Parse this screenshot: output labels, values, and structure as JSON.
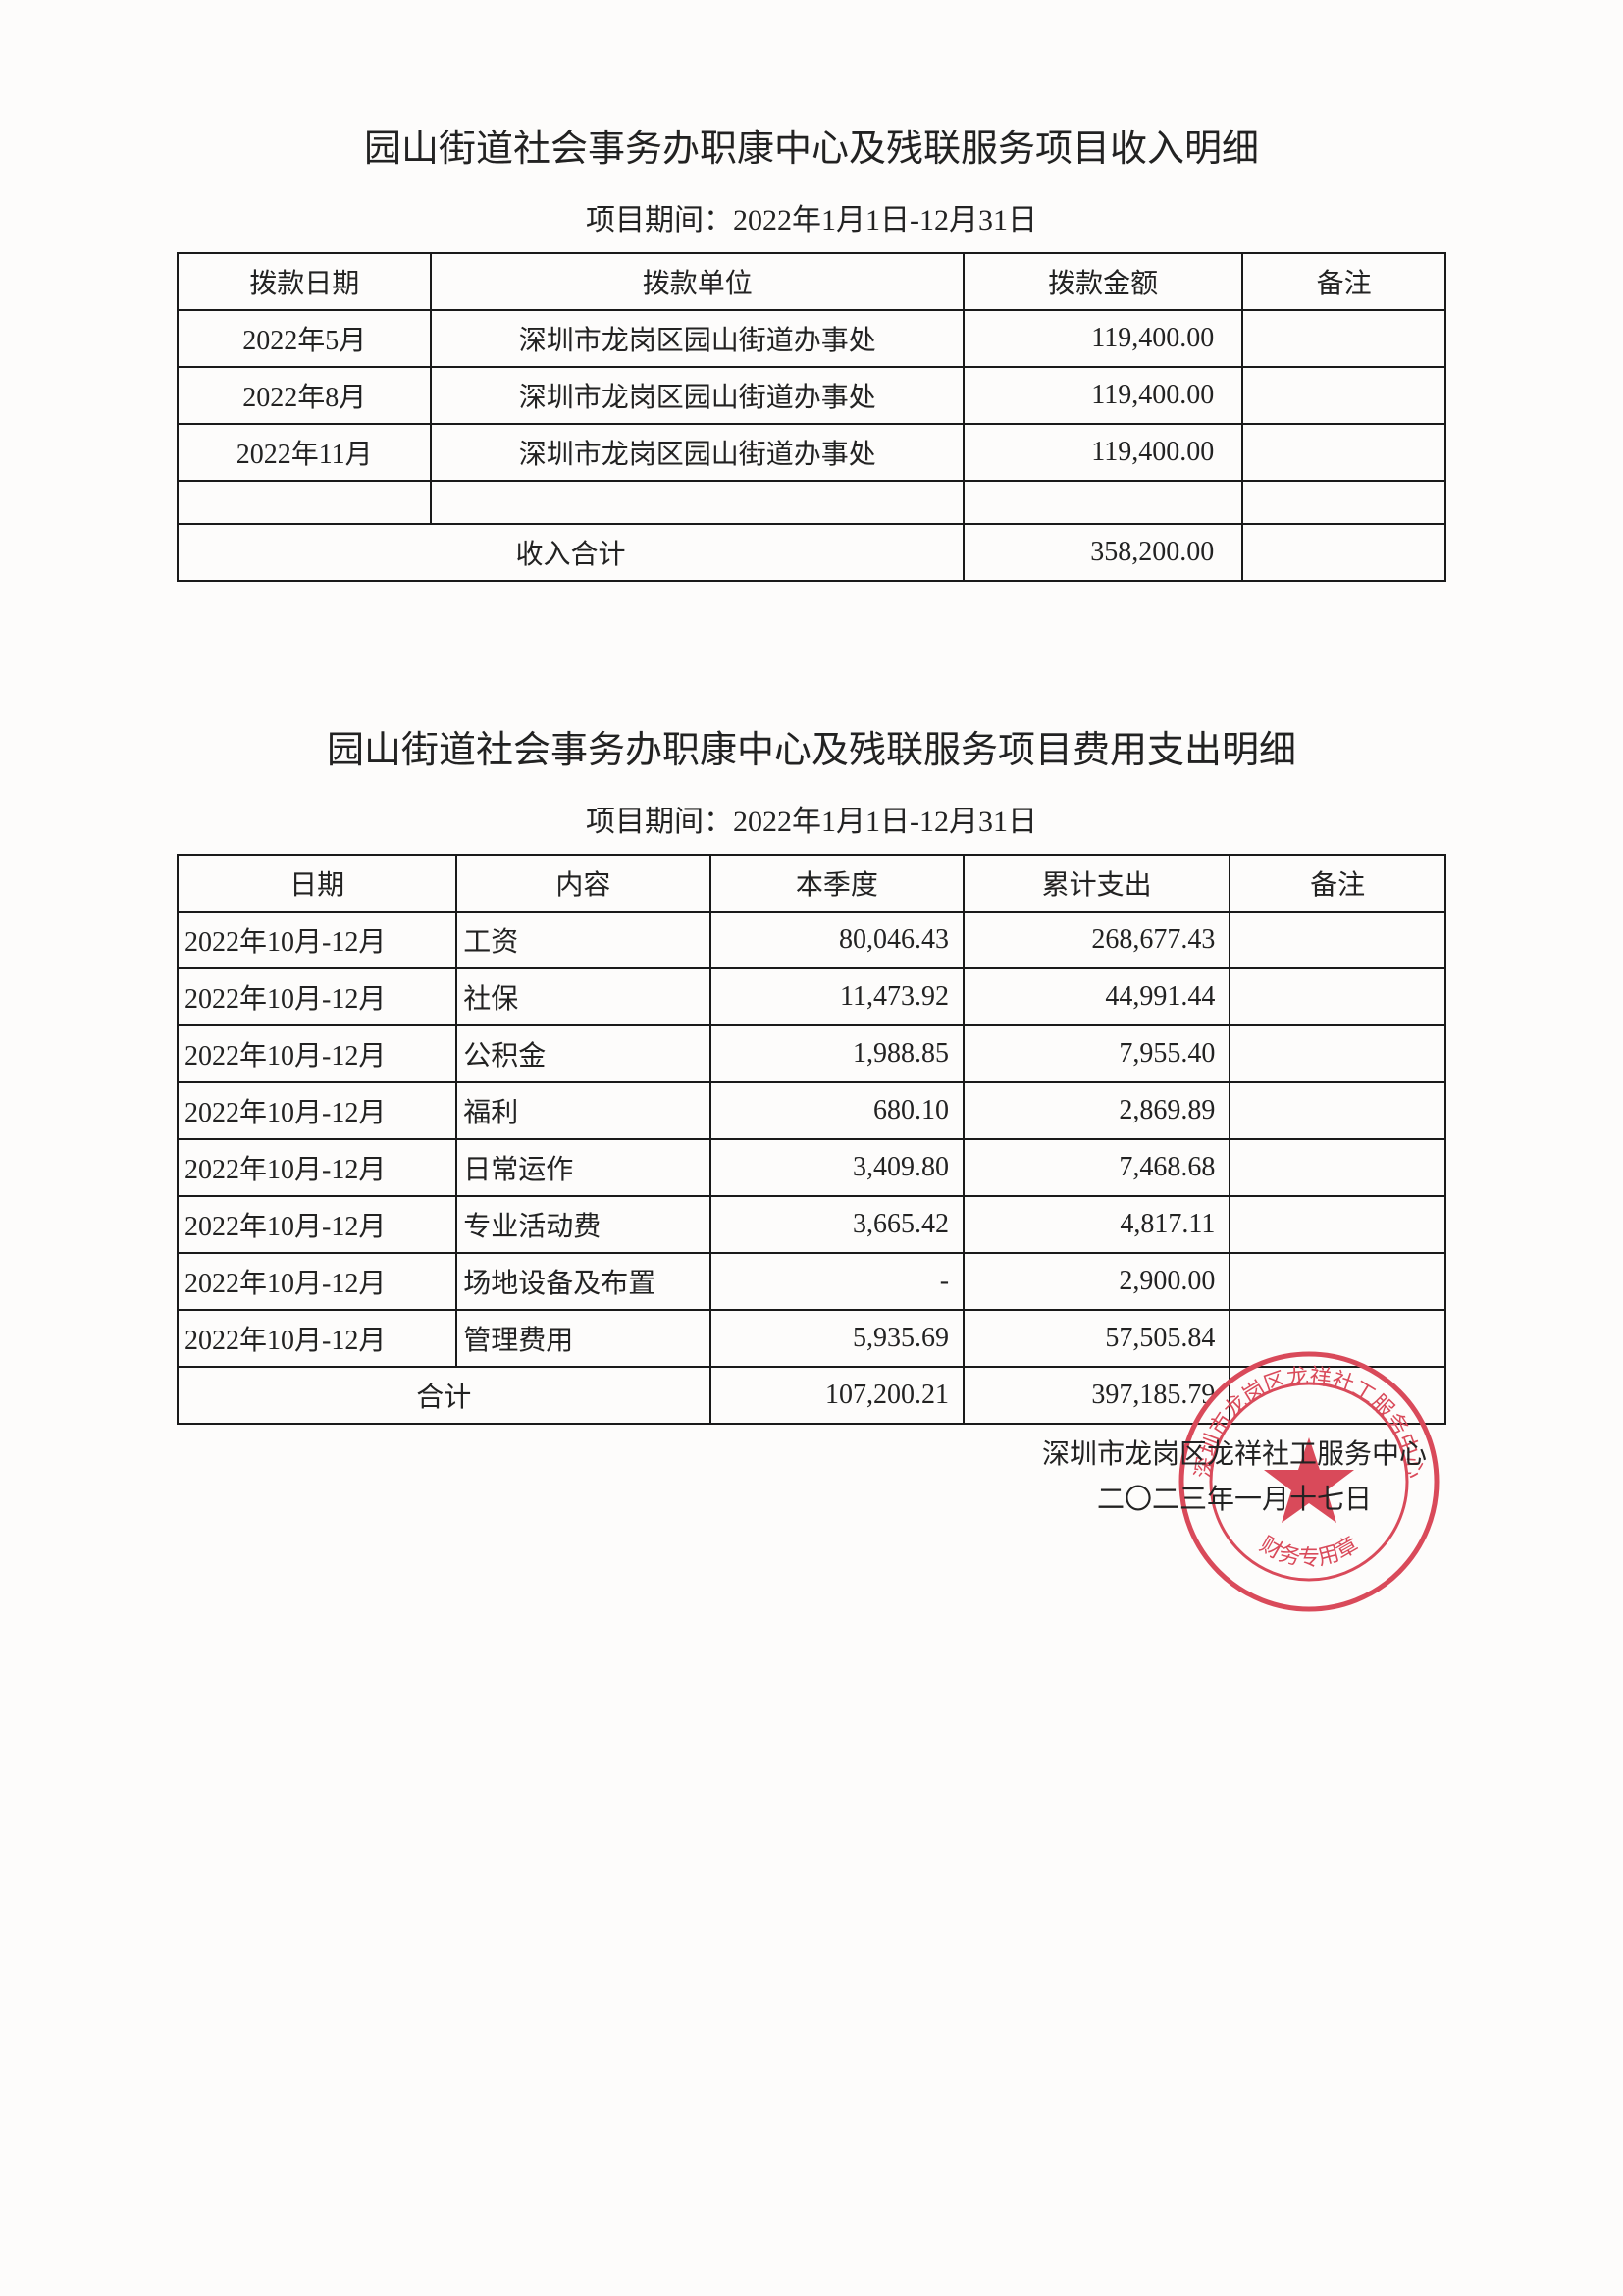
{
  "income": {
    "title": "园山街道社会事务办职康中心及残联服务项目收入明细",
    "period": "项目期间：2022年1月1日-12月31日",
    "columns": [
      "拨款日期",
      "拨款单位",
      "拨款金额",
      "备注"
    ],
    "col_widths_pct": [
      20,
      42,
      22,
      16
    ],
    "rows": [
      {
        "date": "2022年5月",
        "unit": "深圳市龙岗区园山街道办事处",
        "amount": "119,400.00",
        "note": ""
      },
      {
        "date": "2022年8月",
        "unit": "深圳市龙岗区园山街道办事处",
        "amount": "119,400.00",
        "note": ""
      },
      {
        "date": "2022年11月",
        "unit": "深圳市龙岗区园山街道办事处",
        "amount": "119,400.00",
        "note": ""
      },
      {
        "date": "",
        "unit": "",
        "amount": "",
        "note": ""
      }
    ],
    "total_label": "收入合计",
    "total_amount": "358,200.00"
  },
  "expense": {
    "title": "园山街道社会事务办职康中心及残联服务项目费用支出明细",
    "period": "项目期间：2022年1月1日-12月31日",
    "columns": [
      "日期",
      "内容",
      "本季度",
      "累计支出",
      "备注"
    ],
    "col_widths_pct": [
      22,
      20,
      20,
      21,
      17
    ],
    "rows": [
      {
        "date": "2022年10月-12月",
        "item": "工资",
        "quarter": "80,046.43",
        "cum": "268,677.43",
        "note": ""
      },
      {
        "date": "2022年10月-12月",
        "item": "社保",
        "quarter": "11,473.92",
        "cum": "44,991.44",
        "note": ""
      },
      {
        "date": "2022年10月-12月",
        "item": "公积金",
        "quarter": "1,988.85",
        "cum": "7,955.40",
        "note": ""
      },
      {
        "date": "2022年10月-12月",
        "item": "福利",
        "quarter": "680.10",
        "cum": "2,869.89",
        "note": ""
      },
      {
        "date": "2022年10月-12月",
        "item": "日常运作",
        "quarter": "3,409.80",
        "cum": "7,468.68",
        "note": ""
      },
      {
        "date": "2022年10月-12月",
        "item": "专业活动费",
        "quarter": "3,665.42",
        "cum": "4,817.11",
        "note": ""
      },
      {
        "date": "2022年10月-12月",
        "item": "场地设备及布置",
        "quarter": "-",
        "cum": "2,900.00",
        "note": ""
      },
      {
        "date": "2022年10月-12月",
        "item": "管理费用",
        "quarter": "5,935.69",
        "cum": "57,505.84",
        "note": ""
      }
    ],
    "total_label": "合计",
    "total_quarter": "107,200.21",
    "total_cum": "397,185.79"
  },
  "footer": {
    "org": "深圳市龙岗区龙祥社工服务中心",
    "date": "二〇二三年一月十七日"
  },
  "stamp": {
    "outer_text": "深圳市龙岗区龙祥社工服务中心",
    "inner_text": "财务专用章",
    "color": "#d94a5a",
    "stroke_width": 5
  },
  "style": {
    "page_bg": "#fdfcfb",
    "text_color": "#222222",
    "border_color": "#1a1a1a",
    "title_fontsize": 38,
    "subtitle_fontsize": 30,
    "cell_fontsize": 28,
    "footer_fontsize": 28
  }
}
